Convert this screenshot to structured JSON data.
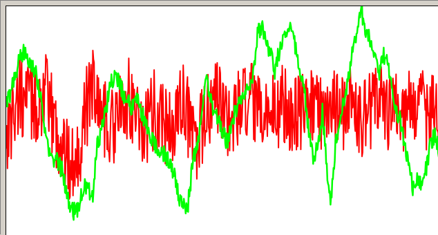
{
  "chart_data": {
    "type": "line",
    "title": "",
    "xlabel": "",
    "ylabel": "",
    "grid": false,
    "legend": "none",
    "xlim": [
      0,
      100
    ],
    "ylim": [
      0,
      100
    ],
    "series": [
      {
        "color": "#ff0000",
        "noise_amplitude": 18,
        "values": [
          45,
          50,
          55,
          62,
          58,
          60,
          58,
          55,
          60,
          62,
          55,
          50,
          42,
          38,
          35,
          30,
          35,
          40,
          50,
          60,
          68,
          60,
          55,
          50,
          48,
          48,
          52,
          56,
          60,
          58,
          55,
          50,
          45,
          50,
          55,
          55,
          52,
          48,
          45,
          50,
          55,
          60,
          50,
          45,
          40,
          45,
          50,
          55,
          60,
          58,
          56,
          52,
          50,
          52,
          55,
          56,
          60,
          56,
          52,
          50,
          52,
          54,
          55,
          56,
          58,
          56,
          54,
          52,
          54,
          55,
          56,
          58,
          56,
          54,
          56,
          60,
          56,
          52,
          54,
          56,
          58,
          55,
          52,
          54,
          55,
          56,
          58,
          56,
          54,
          56,
          58,
          56,
          54,
          55,
          56,
          58,
          56,
          54,
          55,
          56,
          55
        ]
      },
      {
        "color": "#00ff00",
        "noise_amplitude": 4,
        "values": [
          57,
          62,
          70,
          76,
          80,
          78,
          75,
          70,
          60,
          45,
          35,
          33,
          32,
          28,
          18,
          12,
          10,
          15,
          22,
          20,
          18,
          40,
          45,
          55,
          65,
          70,
          68,
          62,
          58,
          56,
          60,
          55,
          50,
          45,
          40,
          38,
          36,
          34,
          30,
          25,
          15,
          13,
          14,
          30,
          40,
          50,
          70,
          60,
          55,
          50,
          45,
          40,
          48,
          55,
          60,
          62,
          64,
          70,
          88,
          92,
          85,
          80,
          72,
          80,
          85,
          92,
          90,
          80,
          72,
          60,
          42,
          32,
          40,
          55,
          30,
          15,
          40,
          50,
          60,
          68,
          80,
          88,
          98,
          90,
          85,
          80,
          70,
          80,
          75,
          65,
          55,
          50,
          40,
          30,
          20,
          25,
          22,
          30,
          40,
          45,
          35
        ]
      }
    ]
  }
}
